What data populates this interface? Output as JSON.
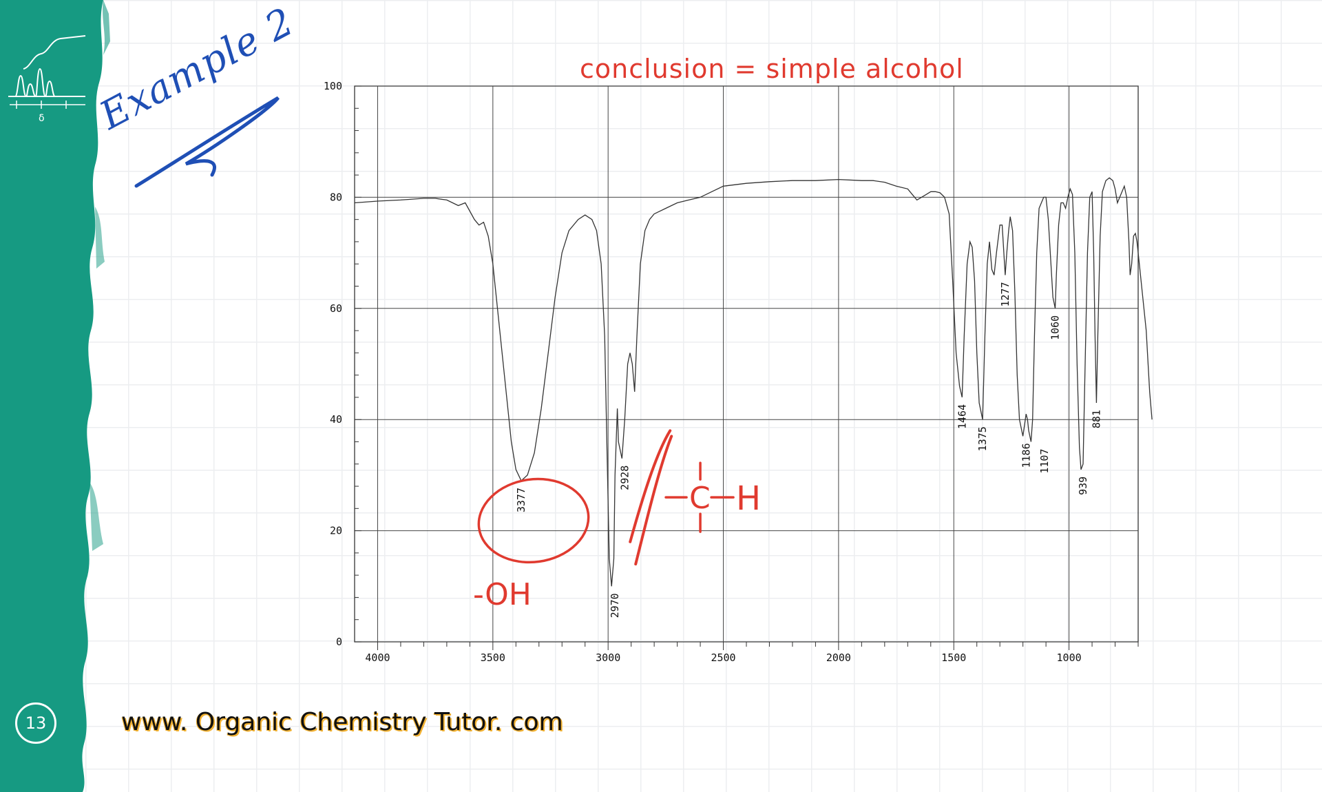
{
  "slide": {
    "example_label": "Example 2",
    "conclusion": "conclusion = simple alcohol",
    "page_number": "13",
    "website": "www. Organic Chemistry Tutor. com",
    "colors": {
      "strip": "#169a82",
      "annotation": "#e03a2f",
      "title": "#1f4fb5",
      "website_outline": "#f2b233"
    },
    "logo_icon": "nmr-spectrum-icon",
    "logo_label": "δ"
  },
  "chart_data": {
    "type": "line",
    "x_reversed": true,
    "xlim": [
      4100,
      700
    ],
    "ylim": [
      0,
      100
    ],
    "x_ticks": [
      "4000",
      "3500",
      "3000",
      "2500",
      "2000",
      "1500",
      "1000"
    ],
    "y_ticks": [
      "0",
      "20",
      "40",
      "60",
      "80",
      "100"
    ],
    "grid": true,
    "series": [
      {
        "points": [
          [
            4100,
            79
          ],
          [
            4000,
            79.3
          ],
          [
            3900,
            79.5
          ],
          [
            3800,
            79.8
          ],
          [
            3750,
            79.8
          ],
          [
            3700,
            79.5
          ],
          [
            3650,
            78.5
          ],
          [
            3620,
            79
          ],
          [
            3580,
            76
          ],
          [
            3560,
            75
          ],
          [
            3540,
            75.5
          ],
          [
            3520,
            73
          ],
          [
            3500,
            68
          ],
          [
            3480,
            60
          ],
          [
            3460,
            52
          ],
          [
            3440,
            44
          ],
          [
            3420,
            36
          ],
          [
            3400,
            31
          ],
          [
            3377,
            29
          ],
          [
            3350,
            30
          ],
          [
            3320,
            34
          ],
          [
            3290,
            42
          ],
          [
            3260,
            52
          ],
          [
            3230,
            62
          ],
          [
            3200,
            70
          ],
          [
            3170,
            74
          ],
          [
            3130,
            76
          ],
          [
            3100,
            76.8
          ],
          [
            3070,
            76
          ],
          [
            3050,
            74
          ],
          [
            3030,
            68
          ],
          [
            3015,
            55
          ],
          [
            3005,
            35
          ],
          [
            2995,
            15
          ],
          [
            2985,
            10
          ],
          [
            2975,
            15
          ],
          [
            2970,
            30
          ],
          [
            2960,
            42
          ],
          [
            2955,
            36
          ],
          [
            2940,
            33
          ],
          [
            2928,
            40
          ],
          [
            2915,
            50
          ],
          [
            2905,
            52
          ],
          [
            2895,
            50
          ],
          [
            2885,
            45
          ],
          [
            2875,
            55
          ],
          [
            2860,
            68
          ],
          [
            2840,
            74
          ],
          [
            2820,
            76
          ],
          [
            2800,
            77
          ],
          [
            2750,
            78
          ],
          [
            2700,
            79
          ],
          [
            2650,
            79.5
          ],
          [
            2600,
            80
          ],
          [
            2550,
            81
          ],
          [
            2500,
            82
          ],
          [
            2400,
            82.5
          ],
          [
            2300,
            82.8
          ],
          [
            2200,
            83
          ],
          [
            2100,
            83
          ],
          [
            2000,
            83.2
          ],
          [
            1900,
            83
          ],
          [
            1850,
            83
          ],
          [
            1800,
            82.7
          ],
          [
            1750,
            82
          ],
          [
            1700,
            81.5
          ],
          [
            1680,
            80.5
          ],
          [
            1660,
            79.5
          ],
          [
            1640,
            80
          ],
          [
            1620,
            80.5
          ],
          [
            1600,
            81
          ],
          [
            1580,
            81
          ],
          [
            1560,
            80.8
          ],
          [
            1540,
            80
          ],
          [
            1520,
            77
          ],
          [
            1505,
            65
          ],
          [
            1490,
            52
          ],
          [
            1475,
            46
          ],
          [
            1464,
            44
          ],
          [
            1455,
            55
          ],
          [
            1442,
            68
          ],
          [
            1430,
            72
          ],
          [
            1420,
            71
          ],
          [
            1410,
            65
          ],
          [
            1400,
            52
          ],
          [
            1390,
            43
          ],
          [
            1375,
            40
          ],
          [
            1365,
            55
          ],
          [
            1355,
            68
          ],
          [
            1345,
            72
          ],
          [
            1335,
            67
          ],
          [
            1325,
            66
          ],
          [
            1315,
            70
          ],
          [
            1300,
            75
          ],
          [
            1290,
            75
          ],
          [
            1280,
            68
          ],
          [
            1277,
            66
          ],
          [
            1270,
            70
          ],
          [
            1262,
            74
          ],
          [
            1255,
            76.5
          ],
          [
            1245,
            74
          ],
          [
            1235,
            63
          ],
          [
            1225,
            48
          ],
          [
            1215,
            40
          ],
          [
            1200,
            37
          ],
          [
            1186,
            41
          ],
          [
            1180,
            40
          ],
          [
            1175,
            38
          ],
          [
            1165,
            36
          ],
          [
            1158,
            40
          ],
          [
            1150,
            55
          ],
          [
            1140,
            70
          ],
          [
            1130,
            78
          ],
          [
            1110,
            80
          ],
          [
            1100,
            80
          ],
          [
            1090,
            76
          ],
          [
            1070,
            62
          ],
          [
            1060,
            60
          ],
          [
            1055,
            66
          ],
          [
            1045,
            75
          ],
          [
            1035,
            79
          ],
          [
            1025,
            79
          ],
          [
            1015,
            78
          ],
          [
            1005,
            80
          ],
          [
            995,
            81.5
          ],
          [
            985,
            80.5
          ],
          [
            975,
            70
          ],
          [
            965,
            50
          ],
          [
            955,
            35
          ],
          [
            948,
            31
          ],
          [
            939,
            32
          ],
          [
            930,
            50
          ],
          [
            920,
            70
          ],
          [
            910,
            80
          ],
          [
            900,
            81
          ],
          [
            893,
            70
          ],
          [
            887,
            55
          ],
          [
            881,
            43
          ],
          [
            875,
            55
          ],
          [
            865,
            73
          ],
          [
            855,
            81
          ],
          [
            840,
            83
          ],
          [
            825,
            83.5
          ],
          [
            810,
            83
          ],
          [
            800,
            81.5
          ],
          [
            790,
            79
          ],
          [
            780,
            80
          ],
          [
            770,
            81
          ],
          [
            760,
            82
          ],
          [
            750,
            80
          ],
          [
            740,
            72
          ],
          [
            735,
            66
          ],
          [
            728,
            68
          ],
          [
            720,
            73
          ],
          [
            712,
            73.5
          ],
          [
            705,
            72
          ],
          [
            695,
            68
          ],
          [
            680,
            62
          ],
          [
            665,
            56
          ],
          [
            650,
            45
          ],
          [
            640,
            40
          ]
        ]
      }
    ],
    "peak_labels": [
      {
        "x": 3377,
        "y": 29,
        "label": "3377"
      },
      {
        "x": 2970,
        "y": 10,
        "label": "2970"
      },
      {
        "x": 2928,
        "y": 33,
        "label": "2928"
      },
      {
        "x": 1464,
        "y": 44,
        "label": "1464"
      },
      {
        "x": 1375,
        "y": 40,
        "label": "1375"
      },
      {
        "x": 1277,
        "y": 66,
        "label": "1277"
      },
      {
        "x": 1186,
        "y": 37,
        "label": "1186"
      },
      {
        "x": 1107,
        "y": 36,
        "label": "1107"
      },
      {
        "x": 1060,
        "y": 60,
        "label": "1060"
      },
      {
        "x": 939,
        "y": 31,
        "label": "939"
      },
      {
        "x": 881,
        "y": 43,
        "label": "881"
      }
    ],
    "annotations": [
      {
        "text": "-OH",
        "points_to": 3377
      },
      {
        "text": "C",
        "points_to": 2970
      },
      {
        "text": "H",
        "points_to": 2970
      }
    ]
  }
}
